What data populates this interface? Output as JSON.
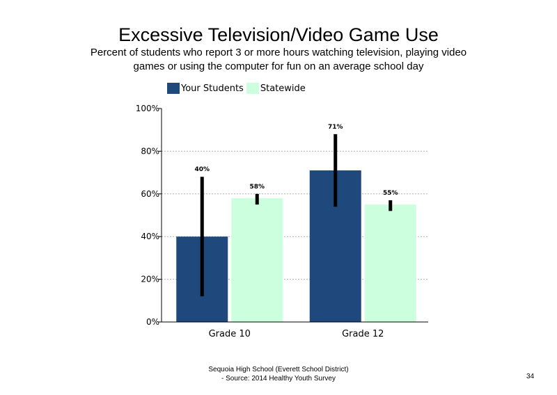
{
  "slide": {
    "title": "Excessive Television/Video Game Use",
    "subtitle": "Percent of students who report 3 or more hours watching television, playing video games or using the computer for fun on an average school day",
    "footer_line1": "Sequoia High School (Everett School District)",
    "footer_line2": "- Source: 2014 Healthy Youth Survey",
    "page_number": "34"
  },
  "chart_data": {
    "type": "bar",
    "title": "Excessive Television/Video Game Use",
    "categories": [
      "Grade 10",
      "Grade 12"
    ],
    "series": [
      {
        "name": "Your Students",
        "color": "#1f497d",
        "values": [
          40,
          71
        ],
        "labels": [
          "40%",
          "71%"
        ],
        "error_low": [
          12,
          54
        ],
        "error_high": [
          68,
          88
        ]
      },
      {
        "name": "Statewide",
        "color": "#ccffdd",
        "values": [
          58,
          55
        ],
        "labels": [
          "58%",
          "55%"
        ],
        "error_low": [
          55,
          52
        ],
        "error_high": [
          60,
          57
        ]
      }
    ],
    "ylim": [
      0,
      100
    ],
    "yticks": [
      0,
      20,
      40,
      60,
      80,
      100
    ],
    "ytick_labels": [
      "0%",
      "20%",
      "40%",
      "60%",
      "80%",
      "100%"
    ],
    "grid": true,
    "legend": "top-left"
  }
}
